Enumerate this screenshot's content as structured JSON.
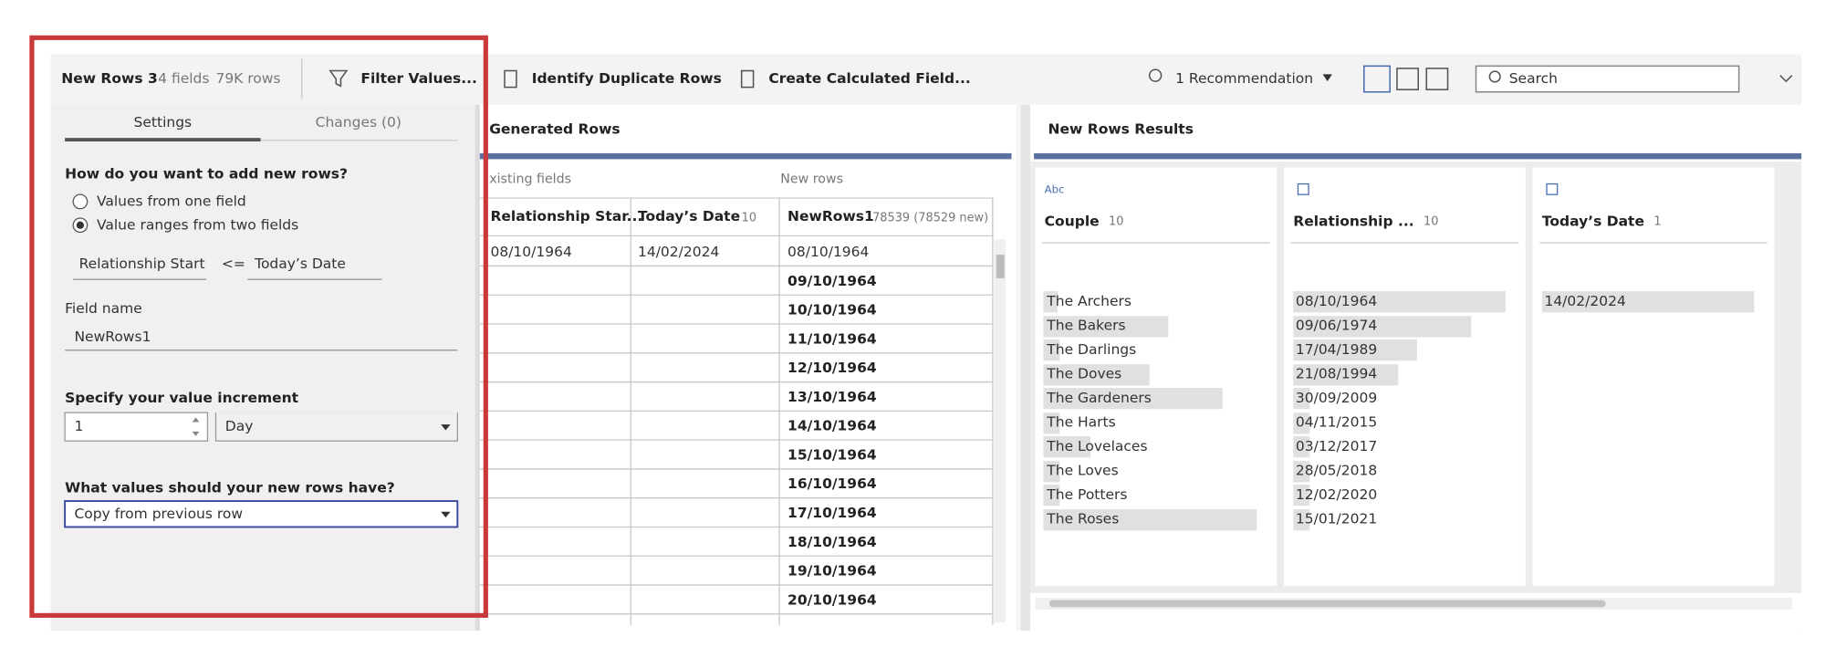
{
  "toolbar": {
    "step_name": "New Rows 3",
    "fields": "4 fields",
    "rows": "79K rows",
    "buttons": [
      "Filter Values...",
      "Identify Duplicate Rows",
      "Create Calculated Field..."
    ],
    "recommendation": "1 Recommendation",
    "search": "Search"
  },
  "settings": {
    "tabs": [
      "Settings",
      "Changes (0)"
    ],
    "question1": "How do you want to add new rows?",
    "options": [
      "Values from one field",
      "Value ranges from two fields"
    ],
    "range_start": "Relationship Start",
    "operator": "<=",
    "range_end": "Today’s Date",
    "field_name_label": "Field name",
    "field_name": "NewRows1",
    "increment_label": "Specify your value increment",
    "increment_value": "1",
    "increment_unit": "Day",
    "question2": "What values should your new rows have?",
    "fill_option": "Copy from previous row"
  },
  "generated": {
    "title": "Generated Rows",
    "existing_label": "xisting fields",
    "new_label": "New rows",
    "columns": [
      {
        "name": "Relationship Star..."
      },
      {
        "name": "Today’s Date",
        "count": "10"
      },
      {
        "name": "NewRows1",
        "count": "78539 (78529 new)"
      }
    ],
    "first_row": [
      "08/10/1964",
      "14/02/2024",
      "08/10/1964"
    ],
    "new_values": [
      "09/10/1964",
      "10/10/1964",
      "11/10/1964",
      "12/10/1964",
      "13/10/1964",
      "14/10/1964",
      "15/10/1964",
      "16/10/1964",
      "17/10/1964",
      "18/10/1964",
      "19/10/1964",
      "20/10/1964"
    ]
  },
  "results": {
    "title": "New Rows Results",
    "cards": [
      {
        "type": "Abc",
        "name": "Couple",
        "count": "10",
        "values": [
          "The Archers",
          "The Bakers",
          "The Darlings",
          "The Doves",
          "The Gardeners",
          "The Harts",
          "The Lovelaces",
          "The Loves",
          "The Potters",
          "The Roses"
        ]
      },
      {
        "name": "Relationship ...",
        "count": "10",
        "values": [
          "08/10/1964",
          "09/06/1974",
          "17/04/1989",
          "21/08/1994",
          "30/09/2009",
          "04/11/2015",
          "03/12/2017",
          "28/05/2018",
          "12/02/2020",
          "15/01/2021"
        ]
      },
      {
        "name": "Today’s Date",
        "count": "1",
        "values": [
          "14/02/2024"
        ]
      }
    ]
  }
}
